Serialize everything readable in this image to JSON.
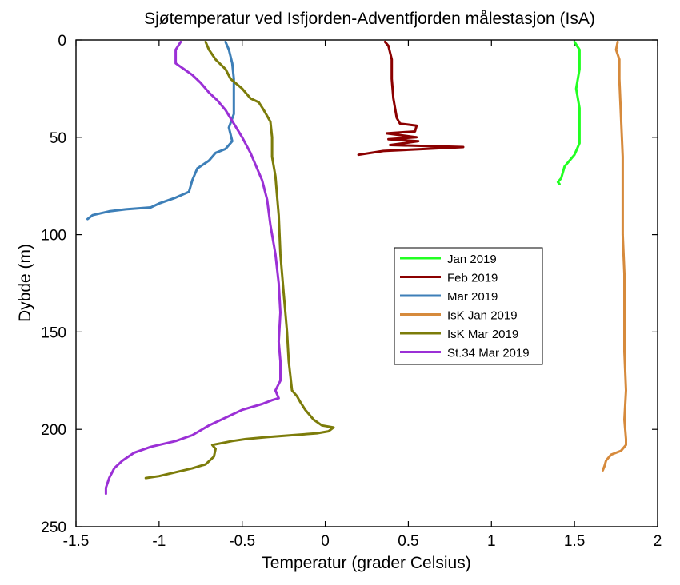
{
  "chart_data": {
    "type": "line",
    "title": "Sjøtemperatur ved Isfjorden-Adventfjorden målestasjon (IsA)",
    "xlabel": "Temperatur (grader Celsius)",
    "ylabel": "Dybde (m)",
    "xlim": [
      -1.5,
      2
    ],
    "ylim": [
      0,
      250
    ],
    "y_reversed": true,
    "xticks": [
      "-1.5",
      "-1",
      "-0.5",
      "0",
      "0.5",
      "1",
      "1.5",
      "2"
    ],
    "yticks": [
      "0",
      "50",
      "100",
      "150",
      "200",
      "250"
    ],
    "grid": false,
    "legend_position": "center-right",
    "series": [
      {
        "name": "Jan 2019",
        "color": "#22ff22",
        "points": [
          [
            1.5,
            1
          ],
          [
            1.53,
            5
          ],
          [
            1.53,
            15
          ],
          [
            1.51,
            25
          ],
          [
            1.53,
            35
          ],
          [
            1.53,
            45
          ],
          [
            1.53,
            53
          ],
          [
            1.5,
            59
          ],
          [
            1.47,
            62
          ],
          [
            1.44,
            65
          ],
          [
            1.43,
            68
          ],
          [
            1.42,
            71
          ],
          [
            1.4,
            73
          ],
          [
            1.41,
            74
          ]
        ]
      },
      {
        "name": "Feb 2019",
        "color": "#8b0000",
        "points": [
          [
            0.36,
            1
          ],
          [
            0.38,
            3
          ],
          [
            0.4,
            10
          ],
          [
            0.4,
            20
          ],
          [
            0.41,
            30
          ],
          [
            0.43,
            40
          ],
          [
            0.45,
            43
          ],
          [
            0.55,
            44
          ],
          [
            0.54,
            47
          ],
          [
            0.37,
            48
          ],
          [
            0.55,
            50
          ],
          [
            0.38,
            51
          ],
          [
            0.56,
            52
          ],
          [
            0.39,
            54
          ],
          [
            0.83,
            55
          ],
          [
            0.6,
            56
          ],
          [
            0.35,
            57
          ],
          [
            0.2,
            59
          ]
        ]
      },
      {
        "name": "Mar 2019",
        "color": "#3d7fb8",
        "points": [
          [
            -0.6,
            1
          ],
          [
            -0.58,
            5
          ],
          [
            -0.56,
            12
          ],
          [
            -0.55,
            20
          ],
          [
            -0.55,
            30
          ],
          [
            -0.55,
            38
          ],
          [
            -0.58,
            45
          ],
          [
            -0.56,
            52
          ],
          [
            -0.6,
            56
          ],
          [
            -0.66,
            58
          ],
          [
            -0.7,
            62
          ],
          [
            -0.77,
            66
          ],
          [
            -0.8,
            72
          ],
          [
            -0.82,
            78
          ],
          [
            -0.9,
            81
          ],
          [
            -1.0,
            84
          ],
          [
            -1.05,
            86
          ],
          [
            -1.2,
            87
          ],
          [
            -1.3,
            88
          ],
          [
            -1.4,
            90
          ],
          [
            -1.43,
            92
          ]
        ]
      },
      {
        "name": "IsK Jan 2019",
        "color": "#d68a3c",
        "points": [
          [
            1.76,
            1
          ],
          [
            1.75,
            5
          ],
          [
            1.77,
            10
          ],
          [
            1.77,
            20
          ],
          [
            1.78,
            40
          ],
          [
            1.79,
            60
          ],
          [
            1.79,
            80
          ],
          [
            1.79,
            100
          ],
          [
            1.8,
            120
          ],
          [
            1.8,
            140
          ],
          [
            1.8,
            160
          ],
          [
            1.81,
            180
          ],
          [
            1.8,
            195
          ],
          [
            1.81,
            205
          ],
          [
            1.81,
            208
          ],
          [
            1.78,
            211
          ],
          [
            1.72,
            213
          ],
          [
            1.69,
            216
          ],
          [
            1.68,
            219
          ],
          [
            1.67,
            221
          ]
        ]
      },
      {
        "name": "IsK Mar 2019",
        "color": "#7c7c0a",
        "points": [
          [
            -0.72,
            1
          ],
          [
            -0.7,
            5
          ],
          [
            -0.66,
            10
          ],
          [
            -0.6,
            15
          ],
          [
            -0.57,
            20
          ],
          [
            -0.5,
            25
          ],
          [
            -0.45,
            30
          ],
          [
            -0.4,
            32
          ],
          [
            -0.37,
            36
          ],
          [
            -0.33,
            42
          ],
          [
            -0.32,
            50
          ],
          [
            -0.32,
            60
          ],
          [
            -0.3,
            70
          ],
          [
            -0.29,
            80
          ],
          [
            -0.28,
            90
          ],
          [
            -0.27,
            110
          ],
          [
            -0.25,
            130
          ],
          [
            -0.23,
            150
          ],
          [
            -0.22,
            165
          ],
          [
            -0.2,
            180
          ],
          [
            -0.17,
            183
          ],
          [
            -0.15,
            186
          ],
          [
            -0.12,
            190
          ],
          [
            -0.07,
            195
          ],
          [
            -0.02,
            198
          ],
          [
            0.05,
            199
          ],
          [
            0.02,
            201
          ],
          [
            -0.05,
            202
          ],
          [
            -0.2,
            203
          ],
          [
            -0.35,
            204
          ],
          [
            -0.48,
            205
          ],
          [
            -0.56,
            206
          ],
          [
            -0.62,
            207
          ],
          [
            -0.68,
            208
          ],
          [
            -0.66,
            210
          ],
          [
            -0.67,
            214
          ],
          [
            -0.72,
            218
          ],
          [
            -0.8,
            220
          ],
          [
            -0.9,
            222
          ],
          [
            -1.0,
            224
          ],
          [
            -1.08,
            225
          ]
        ]
      },
      {
        "name": "St.34 Mar 2019",
        "color": "#9b30d6",
        "points": [
          [
            -0.87,
            1
          ],
          [
            -0.9,
            5
          ],
          [
            -0.9,
            12
          ],
          [
            -0.85,
            15
          ],
          [
            -0.8,
            18
          ],
          [
            -0.75,
            22
          ],
          [
            -0.7,
            27
          ],
          [
            -0.65,
            31
          ],
          [
            -0.6,
            36
          ],
          [
            -0.55,
            43
          ],
          [
            -0.5,
            50
          ],
          [
            -0.45,
            58
          ],
          [
            -0.42,
            64
          ],
          [
            -0.38,
            72
          ],
          [
            -0.35,
            82
          ],
          [
            -0.33,
            95
          ],
          [
            -0.3,
            110
          ],
          [
            -0.28,
            125
          ],
          [
            -0.27,
            140
          ],
          [
            -0.28,
            155
          ],
          [
            -0.27,
            165
          ],
          [
            -0.27,
            175
          ],
          [
            -0.3,
            180
          ],
          [
            -0.28,
            184
          ],
          [
            -0.32,
            185
          ],
          [
            -0.38,
            187
          ],
          [
            -0.5,
            190
          ],
          [
            -0.6,
            194
          ],
          [
            -0.7,
            198
          ],
          [
            -0.8,
            203
          ],
          [
            -0.9,
            206
          ],
          [
            -1.05,
            209
          ],
          [
            -1.15,
            212
          ],
          [
            -1.22,
            216
          ],
          [
            -1.27,
            220
          ],
          [
            -1.3,
            225
          ],
          [
            -1.32,
            230
          ],
          [
            -1.32,
            233
          ]
        ]
      }
    ]
  }
}
